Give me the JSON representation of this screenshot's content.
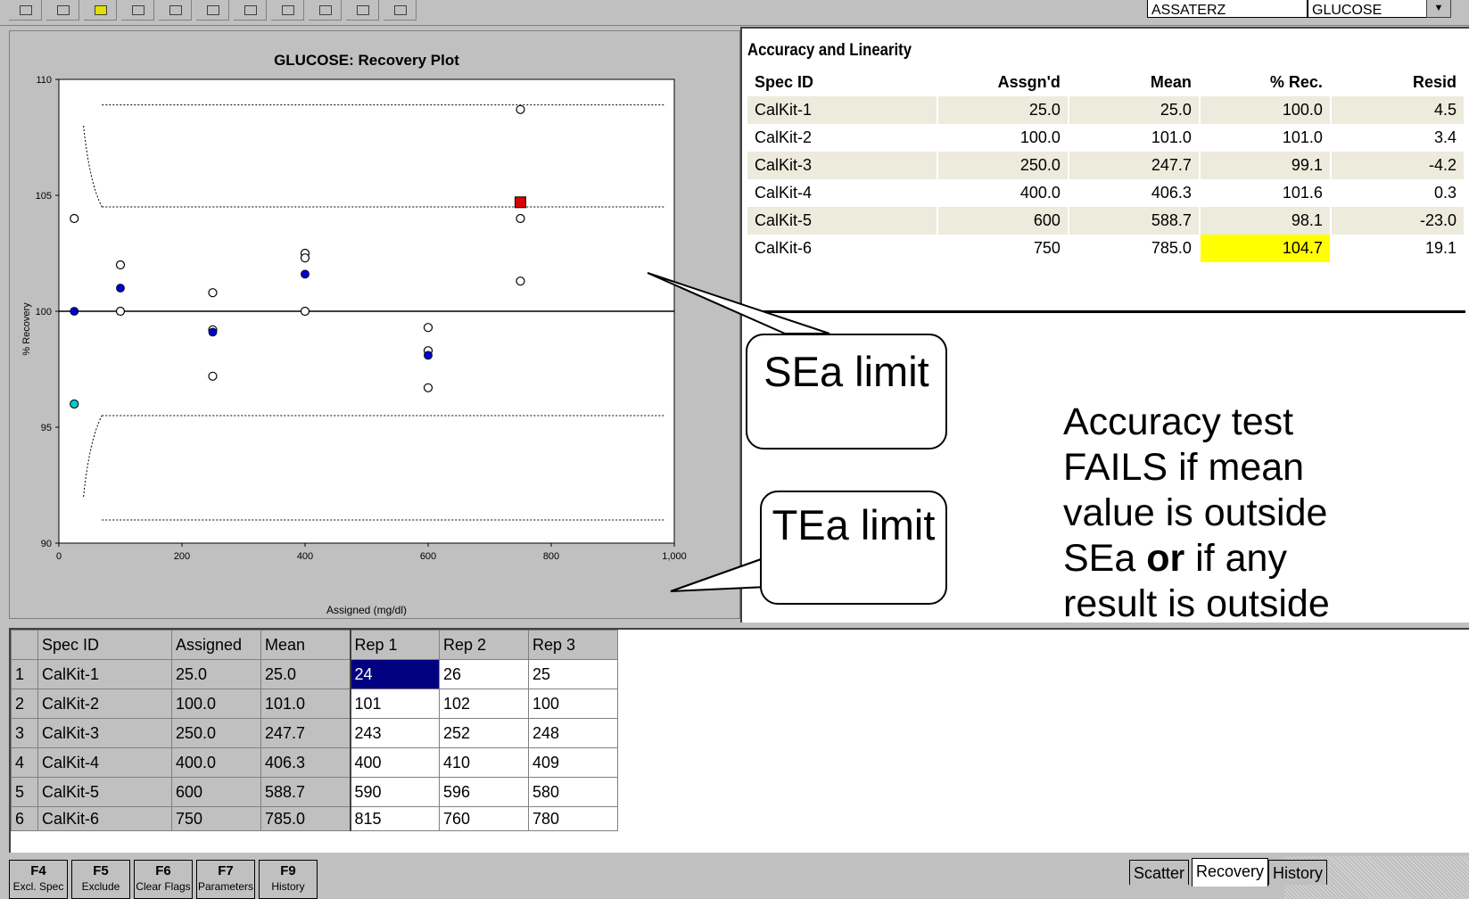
{
  "toolbar": {
    "combo1": "ASSATERZ",
    "combo2": "GLUCOSE",
    "arrow": "▼"
  },
  "chart_data": {
    "type": "scatter",
    "title": "GLUCOSE: Recovery Plot",
    "xlabel": "Assigned (mg/dl)",
    "ylabel": "% Recovery",
    "xlim": [
      0,
      1000
    ],
    "ylim": [
      90,
      110
    ],
    "xticks": [
      "0",
      "200",
      "400",
      "600",
      "800",
      "1,000"
    ],
    "yticks": [
      "90",
      "95",
      "100",
      "105",
      "110"
    ],
    "grid": false,
    "reference_line": 100,
    "sea_limits": {
      "upper": 104.5,
      "lower": 95.5
    },
    "tea_limits": {
      "upper": 108.9,
      "lower": 91.0
    },
    "series": [
      {
        "marker": "open-circle",
        "points": [
          {
            "x": 25,
            "y": 104.0
          },
          {
            "x": 25,
            "y": 96.0
          },
          {
            "x": 100,
            "y": 102.0
          },
          {
            "x": 100,
            "y": 100.0
          },
          {
            "x": 250,
            "y": 100.8
          },
          {
            "x": 250,
            "y": 99.2
          },
          {
            "x": 250,
            "y": 97.2
          },
          {
            "x": 400,
            "y": 102.5
          },
          {
            "x": 400,
            "y": 102.3
          },
          {
            "x": 400,
            "y": 100.0
          },
          {
            "x": 600,
            "y": 99.3
          },
          {
            "x": 600,
            "y": 98.3
          },
          {
            "x": 600,
            "y": 96.7
          },
          {
            "x": 750,
            "y": 108.7
          },
          {
            "x": 750,
            "y": 104.0
          },
          {
            "x": 750,
            "y": 101.3
          }
        ]
      },
      {
        "marker": "mean-dot",
        "color": "#0000cc",
        "points": [
          {
            "x": 25,
            "y": 100.0
          },
          {
            "x": 100,
            "y": 101.0
          },
          {
            "x": 250,
            "y": 99.1
          },
          {
            "x": 400,
            "y": 101.6
          },
          {
            "x": 600,
            "y": 98.1
          }
        ]
      },
      {
        "marker": "flagged-square",
        "color": "#dd0000",
        "points": [
          {
            "x": 750,
            "y": 104.7
          }
        ]
      },
      {
        "marker": "excluded-dot",
        "color": "#00cccc",
        "points": [
          {
            "x": 25,
            "y": 96.0
          }
        ]
      }
    ]
  },
  "accuracy": {
    "title": "Accuracy and Linearity",
    "headers": [
      "Spec ID",
      "Assgn'd",
      "Mean",
      "% Rec.",
      "Resid"
    ],
    "rows": [
      [
        "CalKit-1",
        "25.0",
        "25.0",
        "100.0",
        "4.5"
      ],
      [
        "CalKit-2",
        "100.0",
        "101.0",
        "101.0",
        "3.4"
      ],
      [
        "CalKit-3",
        "250.0",
        "247.7",
        "99.1",
        "-4.2"
      ],
      [
        "CalKit-4",
        "400.0",
        "406.3",
        "101.6",
        "0.3"
      ],
      [
        "CalKit-5",
        "600",
        "588.7",
        "98.1",
        "-23.0"
      ],
      [
        "CalKit-6",
        "750",
        "785.0",
        "104.7",
        "19.1"
      ]
    ],
    "highlight_color": "#ffff00"
  },
  "note": {
    "line1": "Accuracy test FAILS if mean value is outside SEa ",
    "bold": "or",
    "line2": " if any result is outside TEa."
  },
  "callouts": {
    "sea": "SEa limit",
    "tea": "TEa limit"
  },
  "grid": {
    "headers": [
      "",
      "Spec ID",
      "Assigned",
      "Mean",
      "Rep 1",
      "Rep 2",
      "Rep 3"
    ],
    "rows": [
      [
        "1",
        "CalKit-1",
        "25.0",
        "25.0",
        "24",
        "26",
        "25"
      ],
      [
        "2",
        "CalKit-2",
        "100.0",
        "101.0",
        "101",
        "102",
        "100"
      ],
      [
        "3",
        "CalKit-3",
        "250.0",
        "247.7",
        "243",
        "252",
        "248"
      ],
      [
        "4",
        "CalKit-4",
        "400.0",
        "406.3",
        "400",
        "410",
        "409"
      ],
      [
        "5",
        "CalKit-5",
        "600",
        "588.7",
        "590",
        "596",
        "580"
      ],
      [
        "6",
        "CalKit-6",
        "750",
        "785.0",
        "815",
        "760",
        "780"
      ]
    ],
    "selected_color": "#000080"
  },
  "fkeys": [
    {
      "key": "F4",
      "label": "Excl. Spec"
    },
    {
      "key": "F5",
      "label": "Exclude"
    },
    {
      "key": "F6",
      "label": "Clear Flags"
    },
    {
      "key": "F7",
      "label": "Parameters"
    },
    {
      "key": "F9",
      "label": "History"
    }
  ],
  "tabs": [
    {
      "label": "Scatter"
    },
    {
      "label": "Recovery",
      "active": true
    },
    {
      "label": "History"
    }
  ]
}
